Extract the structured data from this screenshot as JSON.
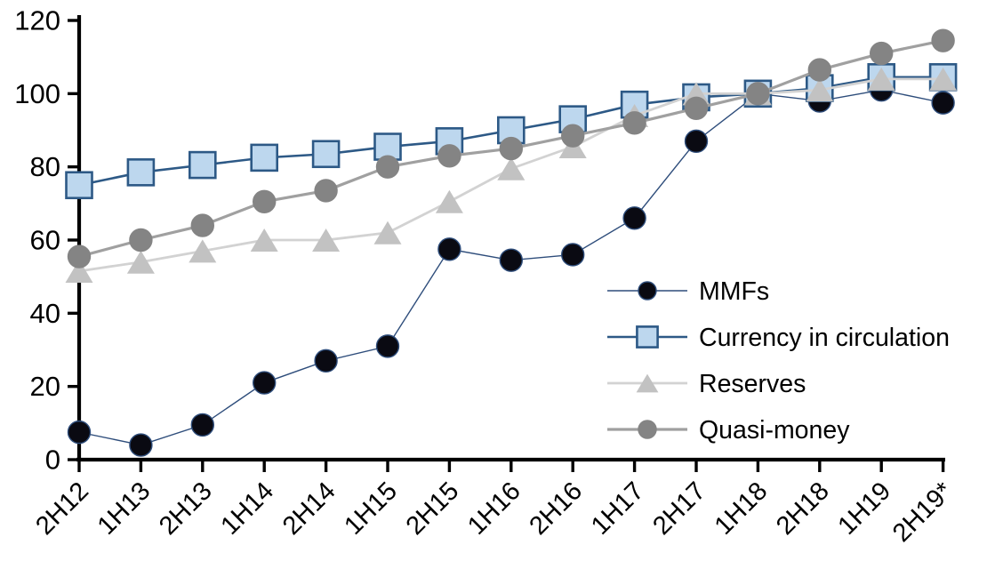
{
  "chart_data": {
    "type": "line",
    "title": "",
    "categories": [
      "2H12",
      "1H13",
      "2H13",
      "1H14",
      "2H14",
      "1H15",
      "2H15",
      "1H16",
      "2H16",
      "1H17",
      "2H17",
      "1H18",
      "2H18",
      "1H19",
      "2H19*"
    ],
    "series": [
      {
        "name": "MMFs",
        "marker": "circle",
        "marker_fill": "#0a0a12",
        "marker_stroke": "#2e4d7b",
        "line_color": "#2e4d7b",
        "values": [
          7.5,
          4,
          9.5,
          21,
          27,
          31,
          57.5,
          54.5,
          56,
          66,
          87,
          100,
          98,
          101,
          97.5
        ]
      },
      {
        "name": "Currency in circulation",
        "marker": "square",
        "marker_fill": "#bdd7ee",
        "marker_stroke": "#2d5986",
        "line_color": "#2d5986",
        "values": [
          75,
          78.5,
          80.5,
          82.5,
          83.5,
          85.5,
          87,
          90,
          93,
          97,
          99,
          100,
          101.5,
          104.5,
          104.5
        ]
      },
      {
        "name": "Reserves",
        "marker": "triangle",
        "marker_fill": "#c2c2c2",
        "marker_stroke": "#c2c2c2",
        "line_color": "#d2d2d2",
        "values": [
          51.5,
          54,
          57,
          60,
          60,
          62,
          70.5,
          79.5,
          85.5,
          94,
          100,
          100,
          101,
          104,
          104
        ]
      },
      {
        "name": "Quasi-money",
        "marker": "circle",
        "marker_fill": "#848484",
        "marker_stroke": "#848484",
        "line_color": "#a0a0a0",
        "values": [
          55.5,
          60,
          64,
          70.5,
          73.5,
          80,
          83,
          85,
          88.5,
          92,
          96,
          100,
          106.5,
          111,
          114.5
        ]
      }
    ],
    "y_axis": {
      "min": 0,
      "max": 120,
      "ticks": [
        0,
        20,
        40,
        60,
        80,
        100,
        120
      ]
    },
    "x_axis": {
      "tick_label_rotation": -45
    },
    "legend": {
      "position": "inside-right",
      "labels": [
        "MMFs",
        "Currency in circulation",
        "Reserves",
        "Quasi-money"
      ]
    },
    "grid": false,
    "axis_color": "#000000",
    "background": "#ffffff"
  }
}
